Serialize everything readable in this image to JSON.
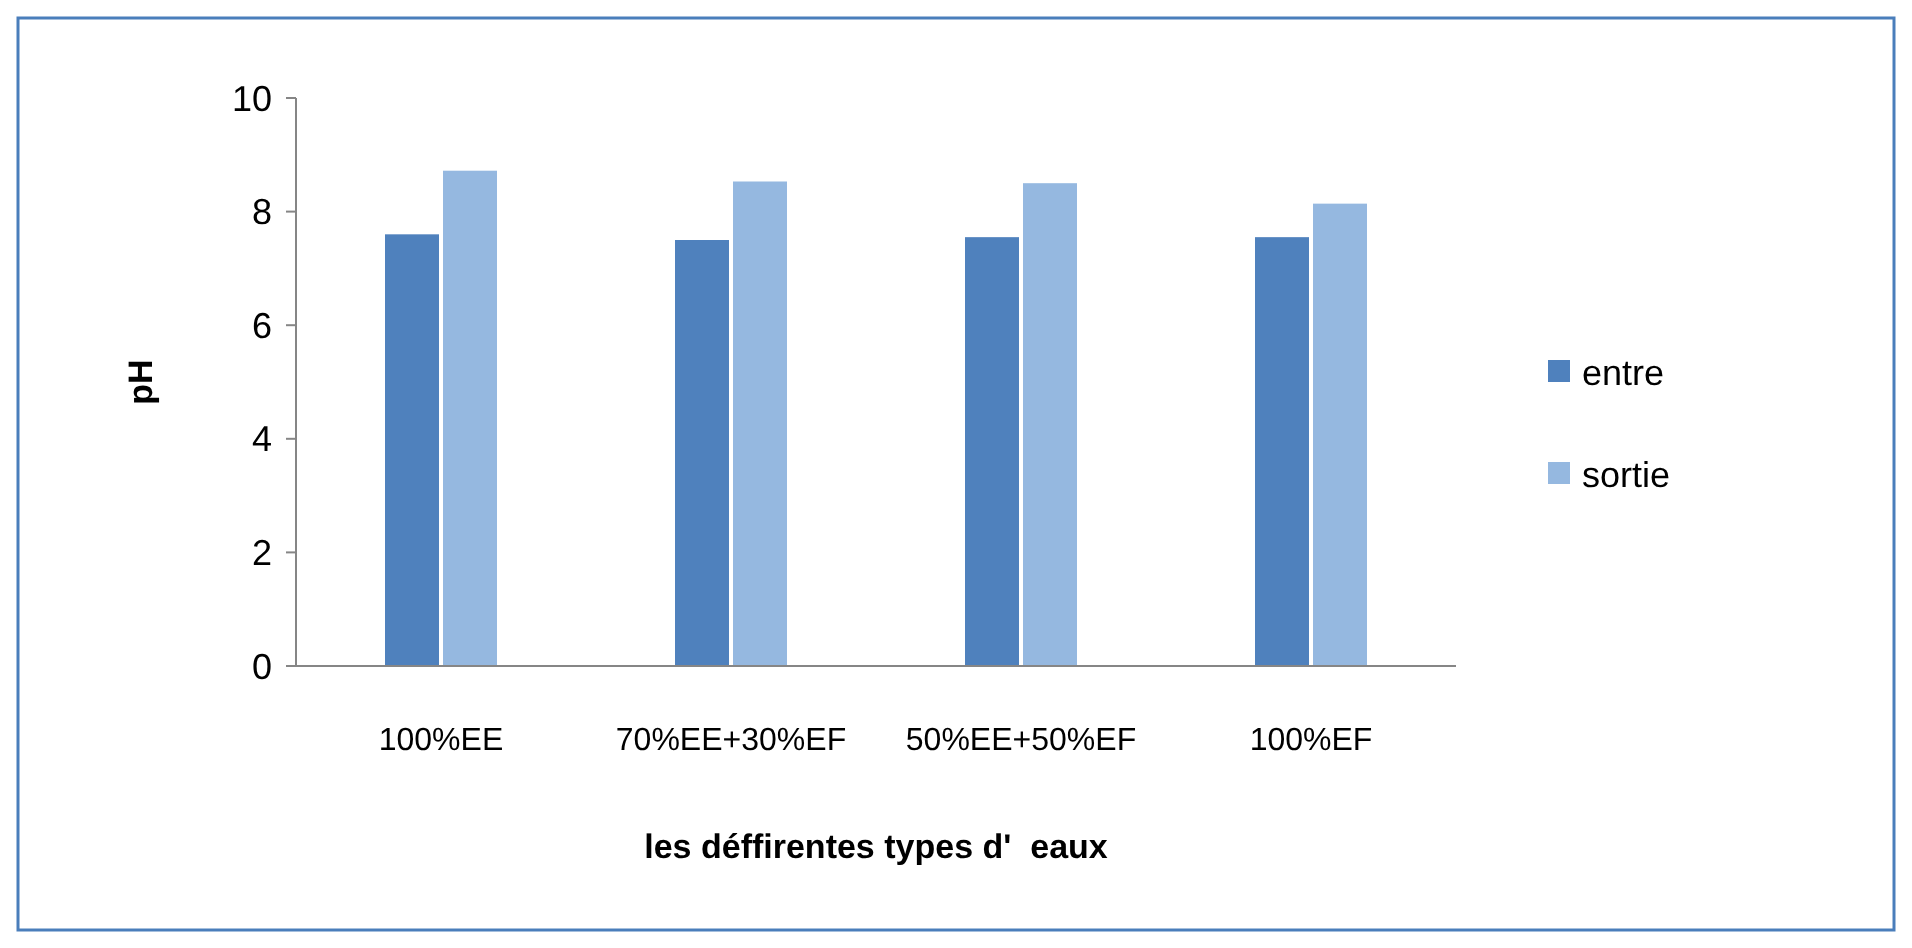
{
  "chart_data": {
    "type": "bar",
    "xlabel": "les déffirentes types d'  eaux",
    "ylabel": "pH",
    "categories": [
      "100%EE",
      "70%EE+30%EF",
      "50%EE+50%EF",
      "100%EF"
    ],
    "series": [
      {
        "name": "entre",
        "color": "#4f81bd",
        "values": [
          7.6,
          7.5,
          7.55,
          7.55
        ]
      },
      {
        "name": "sortie",
        "color": "#95b8e0",
        "values": [
          8.72,
          8.53,
          8.5,
          8.14
        ]
      }
    ],
    "ylim": [
      0,
      10
    ],
    "yticks": [
      0,
      2,
      4,
      6,
      8,
      10
    ],
    "grid": false,
    "legend": "right"
  }
}
